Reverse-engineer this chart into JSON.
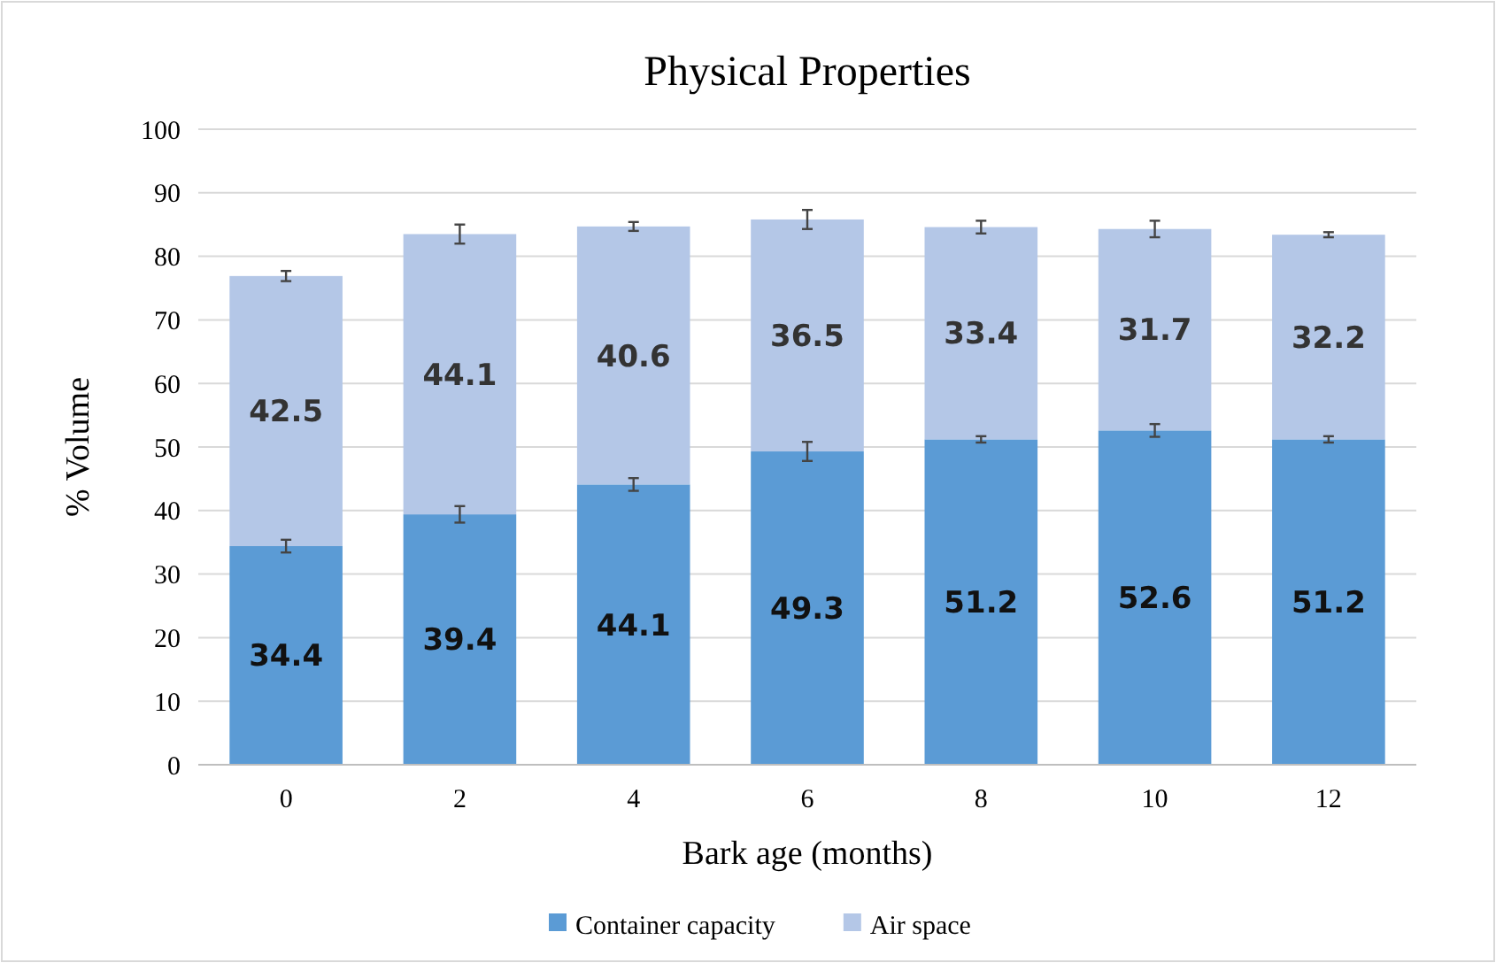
{
  "chart_data": {
    "type": "bar",
    "title": "Physical Properties",
    "xlabel": "Bark age (months)",
    "ylabel": "% Volume",
    "categories": [
      "0",
      "2",
      "4",
      "6",
      "8",
      "10",
      "12"
    ],
    "stacked": true,
    "data_labels": true,
    "grid": "y",
    "legend": "bottom",
    "ylim": [
      0,
      100
    ],
    "yticks": [
      0,
      10,
      20,
      30,
      40,
      50,
      60,
      70,
      80,
      90,
      100
    ],
    "series": [
      {
        "name": "Container capacity",
        "color": "#5b9bd5",
        "values": [
          34.4,
          39.4,
          44.1,
          49.3,
          51.2,
          52.6,
          51.2
        ],
        "errors": [
          1,
          1.3,
          1,
          1.5,
          0.5,
          1,
          0.5
        ]
      },
      {
        "name": "Air space",
        "color": "#b4c7e7",
        "values": [
          42.5,
          44.1,
          40.6,
          36.5,
          33.4,
          31.7,
          32.2
        ],
        "errors": [
          0.8,
          1.5,
          0.7,
          1.5,
          1,
          1.3,
          0.4
        ]
      }
    ]
  }
}
